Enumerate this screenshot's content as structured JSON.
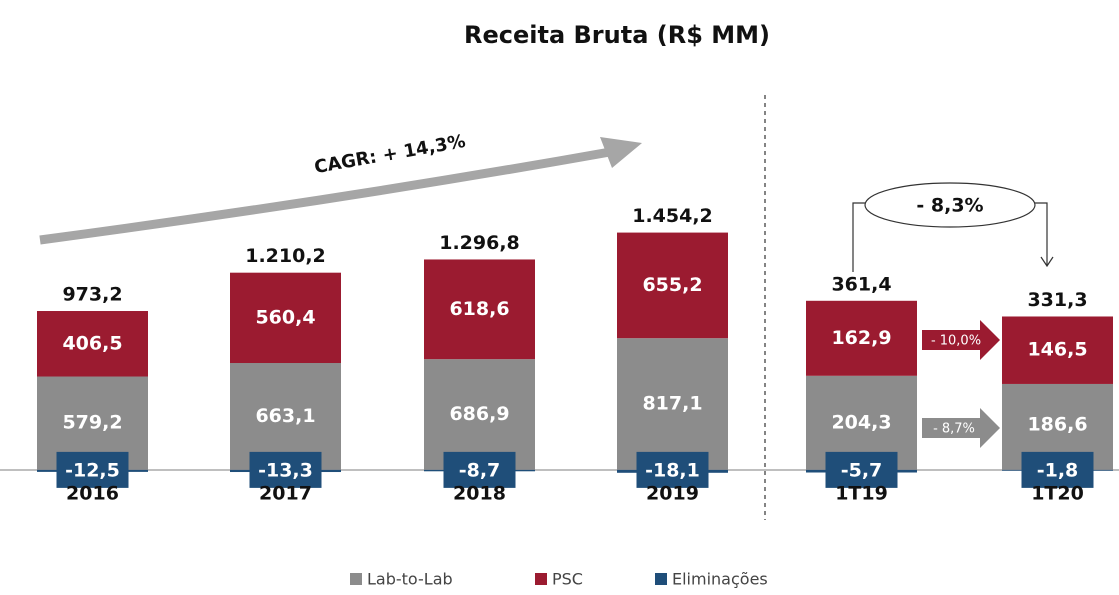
{
  "chart_data": [
    {
      "type": "stacked_bar",
      "title": "Receita Bruta (R$ MM)",
      "categories": [
        "2016",
        "2017",
        "2018",
        "2019"
      ],
      "series": [
        {
          "name": "Lab-to-Lab",
          "color": "#8c8c8c",
          "values": [
            579.2,
            663.1,
            686.9,
            817.1
          ],
          "value_labels": [
            "579,2",
            "663,1",
            "686,9",
            "817,1"
          ]
        },
        {
          "name": "PSC",
          "color": "#9b1b30",
          "values": [
            406.5,
            560.4,
            618.6,
            655.2
          ],
          "value_labels": [
            "406,5",
            "560,4",
            "618,6",
            "655,2"
          ]
        },
        {
          "name": "Eliminações",
          "color": "#1f4e79",
          "values": [
            -12.5,
            -13.3,
            -8.7,
            -18.1
          ],
          "value_labels": [
            "-12,5",
            "-13,3",
            "-8,7",
            "-18,1"
          ]
        }
      ],
      "totals": [
        973.2,
        1210.2,
        1296.8,
        1454.2
      ],
      "total_labels": [
        "973,2",
        "1.210,2",
        "1.296,8",
        "1.454,2"
      ],
      "ylim": [
        -100,
        1600
      ],
      "annotations": [
        "CAGR: + 14,3%"
      ]
    },
    {
      "type": "stacked_bar",
      "categories": [
        "1T19",
        "1T20"
      ],
      "series": [
        {
          "name": "Lab-to-Lab",
          "color": "#8c8c8c",
          "values": [
            204.3,
            186.6
          ],
          "value_labels": [
            "204,3",
            "186,6"
          ]
        },
        {
          "name": "PSC",
          "color": "#9b1b30",
          "values": [
            162.9,
            146.5
          ],
          "value_labels": [
            "162,9",
            "146,5"
          ]
        },
        {
          "name": "Eliminações",
          "color": "#1f4e79",
          "values": [
            -5.7,
            -1.8
          ],
          "value_labels": [
            "-5,7",
            "-1,8"
          ]
        }
      ],
      "totals": [
        361.4,
        331.3
      ],
      "total_labels": [
        "361,4",
        "331,3"
      ],
      "ylim": [
        -35,
        560
      ],
      "annotations": [
        "- 8,3%",
        "- 10,0%",
        "- 8,7%"
      ]
    }
  ]
}
